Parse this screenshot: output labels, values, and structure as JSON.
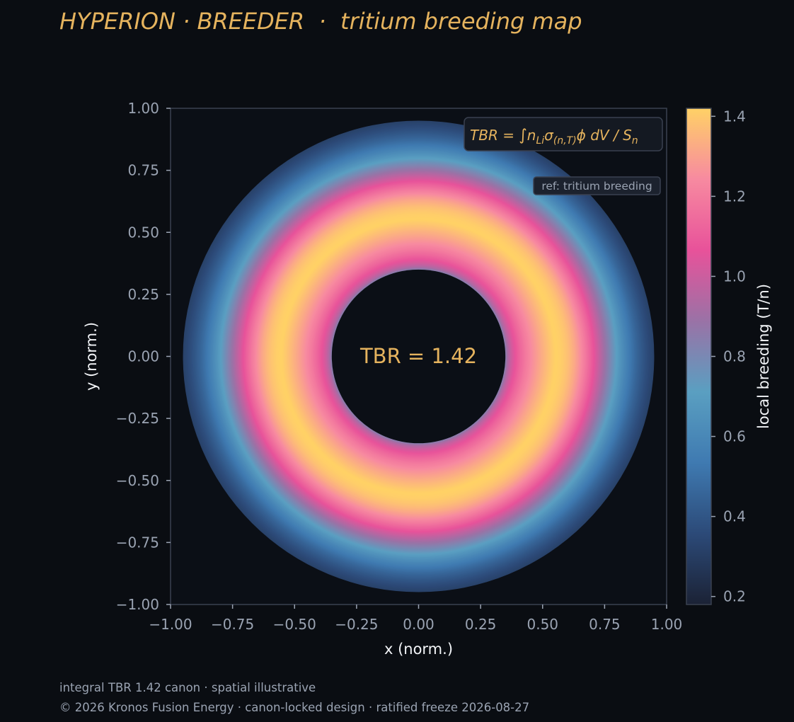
{
  "header": {
    "title": "HYPERION · BREEDER  ·  tritium breeding map"
  },
  "chart_data": {
    "type": "heatmap",
    "title": "HYPERION · BREEDER  ·  tritium breeding map",
    "xlabel": "x (norm.)",
    "ylabel": "y (norm.)",
    "xlim": [
      -1.0,
      1.0
    ],
    "ylim": [
      -1.0,
      1.0
    ],
    "x_ticks": [
      "−1.00",
      "−0.75",
      "−0.50",
      "−0.25",
      "0.00",
      "0.25",
      "0.50",
      "0.75",
      "1.00"
    ],
    "y_ticks": [
      "1.00",
      "0.75",
      "0.50",
      "0.25",
      "0.00",
      "−0.25",
      "−0.50",
      "−0.75",
      "−1.00"
    ],
    "x_tick_values": [
      -1.0,
      -0.75,
      -0.5,
      -0.25,
      0.0,
      0.25,
      0.5,
      0.75,
      1.0
    ],
    "y_tick_values": [
      1.0,
      0.75,
      0.5,
      0.25,
      0.0,
      -0.25,
      -0.5,
      -0.75,
      -1.0
    ],
    "field": {
      "shape": "annulus",
      "inner_radius": 0.35,
      "outer_radius": 0.95,
      "peak_radius": 0.55,
      "peak_value": 1.42,
      "min_value": 0.18
    },
    "center_label": "TBR = 1.42",
    "formula_label": "TBR = ∫ nLiσ(n,T)ϕ dV / Sn",
    "formula_parts": {
      "lhs": "TBR = ",
      "integral": "∫",
      "n": "n",
      "n_sub": "Li",
      "sigma": "σ",
      "sigma_sub": "(n,T)",
      "phi": "ϕ",
      "dv": " dV / ",
      "s": "S",
      "s_sub": "n"
    },
    "ref_label": "ref: tritium breeding",
    "colorbar": {
      "label": "local breeding (T/n)",
      "range": [
        0.18,
        1.42
      ],
      "ticks": [
        "0.2",
        "0.4",
        "0.6",
        "0.8",
        "1.0",
        "1.2",
        "1.4"
      ],
      "tick_values": [
        0.2,
        0.4,
        0.6,
        0.8,
        1.0,
        1.2,
        1.4
      ],
      "colors": [
        "#1b2235",
        "#2c4a78",
        "#3f7ab1",
        "#5a9fc1",
        "#9a72a6",
        "#e8529a",
        "#f78aa0",
        "#ffd166"
      ]
    },
    "colors": {
      "background": "#0a0d12",
      "plot_bg": "#0b0f16",
      "accent": "#e5b35e",
      "tick_text": "#9aa3b2",
      "label_text": "#f2f4f7",
      "spine": "#3a4150"
    }
  },
  "footer": {
    "line1": "integral TBR 1.42 canon · spatial illustrative",
    "line2": "© 2026 Kronos Fusion Energy · canon-locked design · ratified freeze 2026-08-27"
  }
}
